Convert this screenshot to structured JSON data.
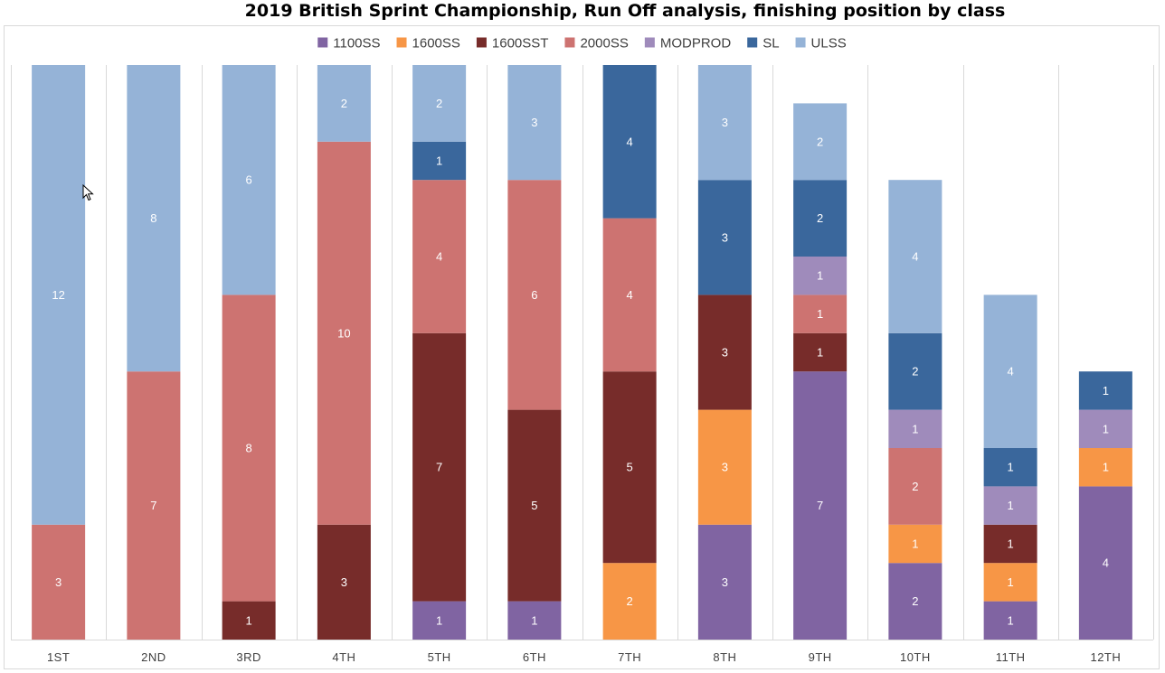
{
  "chart_data": {
    "type": "bar",
    "stacked": true,
    "title": "2019 British Sprint Championship, Run Off analysis, finishing position by class",
    "xlabel": "",
    "ylabel": "",
    "ylim": [
      0,
      15
    ],
    "grid": "vertical",
    "legend": "top",
    "categories": [
      "1ST",
      "2ND",
      "3RD",
      "4TH",
      "5TH",
      "6TH",
      "7TH",
      "8TH",
      "9TH",
      "10TH",
      "11TH",
      "12TH"
    ],
    "series": [
      {
        "name": "1100SS",
        "color": "#8064a2",
        "values": [
          null,
          null,
          null,
          null,
          1,
          1,
          null,
          3,
          7,
          2,
          1,
          4
        ]
      },
      {
        "name": "1600SS",
        "color": "#f79646",
        "values": [
          null,
          null,
          null,
          null,
          null,
          null,
          2,
          3,
          null,
          1,
          1,
          1
        ]
      },
      {
        "name": "1600SST",
        "color": "#772c2a",
        "values": [
          null,
          null,
          1,
          3,
          7,
          5,
          5,
          3,
          1,
          null,
          1,
          null
        ]
      },
      {
        "name": "2000SS",
        "color": "#cd7371",
        "values": [
          3,
          7,
          8,
          10,
          4,
          6,
          4,
          null,
          1,
          2,
          null,
          null
        ]
      },
      {
        "name": "MODPROD",
        "color": "#9f8bbb",
        "values": [
          null,
          null,
          null,
          null,
          null,
          null,
          null,
          null,
          1,
          1,
          1,
          1
        ]
      },
      {
        "name": "SL",
        "color": "#3a679c",
        "values": [
          null,
          null,
          null,
          null,
          1,
          null,
          4,
          3,
          2,
          2,
          1,
          1
        ]
      },
      {
        "name": "ULSS",
        "color": "#95b3d7",
        "values": [
          12,
          8,
          6,
          2,
          2,
          3,
          null,
          3,
          2,
          4,
          4,
          null
        ]
      }
    ]
  },
  "cursor": {
    "icon": "mouse-pointer-icon"
  }
}
